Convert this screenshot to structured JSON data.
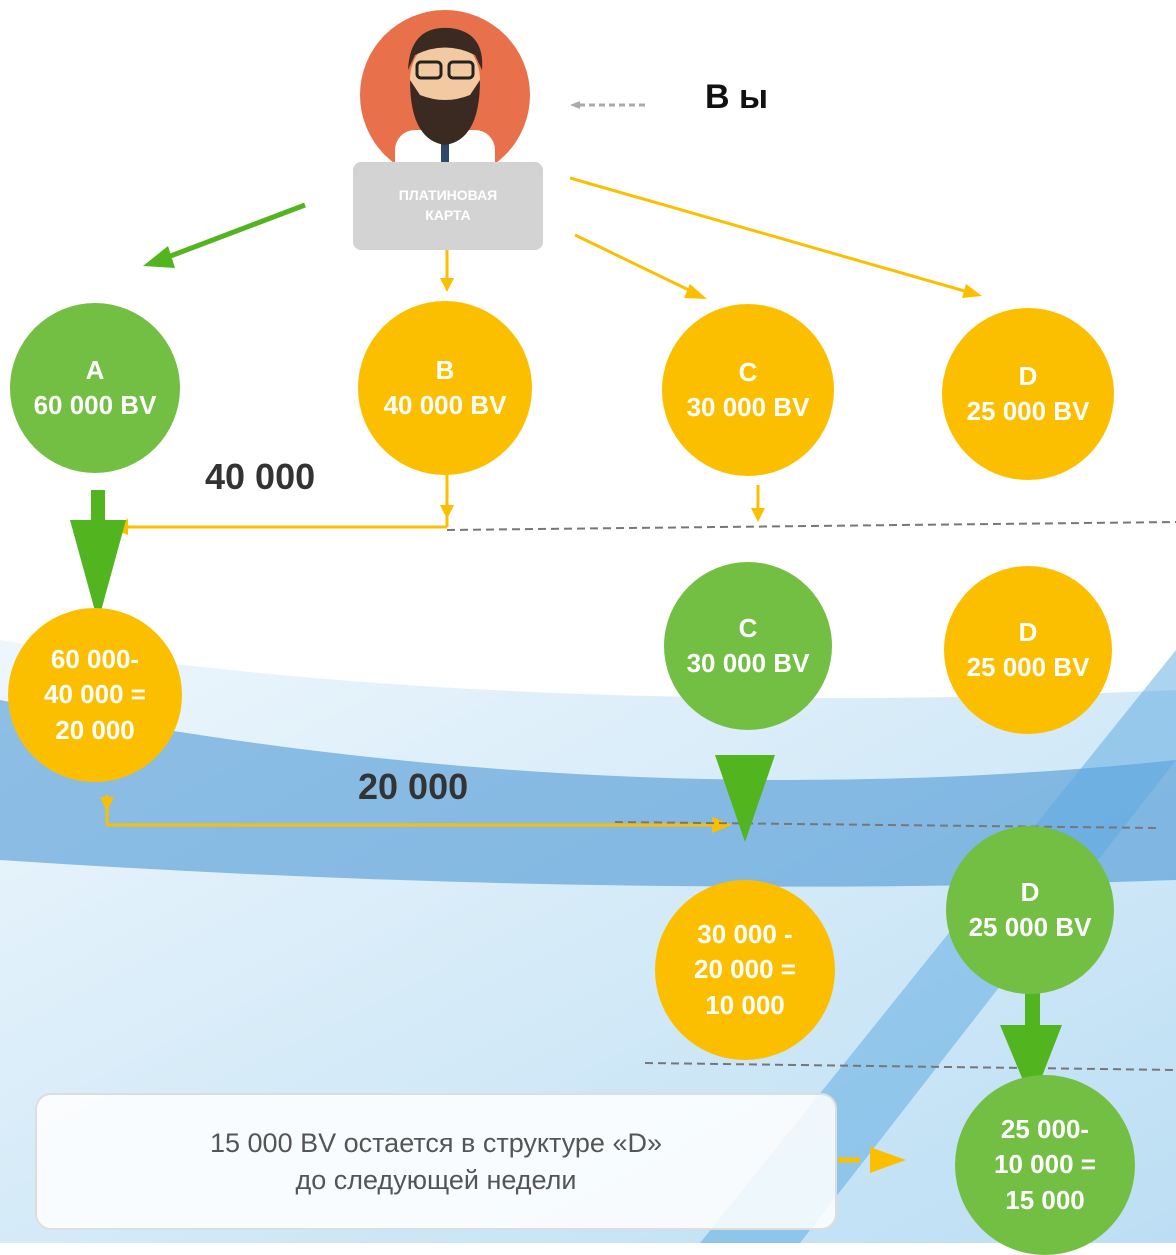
{
  "header": {
    "you": "В ы",
    "card": [
      "ПЛАТИНОВАЯ",
      "КАРТА"
    ]
  },
  "nodes": [
    {
      "lines": [
        "A",
        "60 000 BV"
      ]
    },
    {
      "lines": [
        "B",
        "40 000 BV"
      ]
    },
    {
      "lines": [
        "C",
        "30 000 BV"
      ]
    },
    {
      "lines": [
        "D",
        "25 000 BV"
      ]
    },
    {
      "lines": [
        "60 000-",
        "40 000 =",
        "20 000"
      ]
    },
    {
      "lines": [
        "C",
        "30 000 BV"
      ]
    },
    {
      "lines": [
        "D",
        "25 000 BV"
      ]
    },
    {
      "lines": [
        "30 000 -",
        "20 000 =",
        "10 000"
      ]
    },
    {
      "lines": [
        "D",
        "25 000 BV"
      ]
    },
    {
      "lines": [
        "25 000-",
        "10 000 =",
        "15 000"
      ]
    }
  ],
  "transfers": [
    "40 000",
    "20 000"
  ],
  "note": [
    "15 000 BV остается в структуре «D»",
    "до следующей недели"
  ]
}
